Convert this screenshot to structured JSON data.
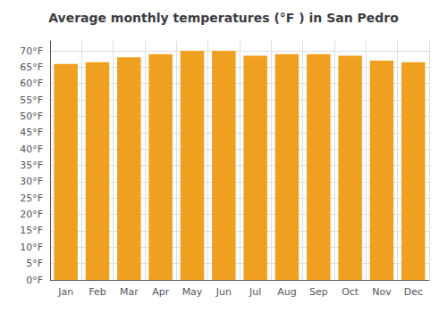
{
  "chart_data": {
    "type": "bar",
    "title": "Average monthly temperatures (°F ) in San Pedro",
    "categories": [
      "Jan",
      "Feb",
      "Mar",
      "Apr",
      "May",
      "Jun",
      "Jul",
      "Aug",
      "Sep",
      "Oct",
      "Nov",
      "Dec"
    ],
    "values": [
      66,
      66.5,
      68,
      69,
      70,
      70,
      68.5,
      69,
      69,
      68.5,
      67,
      66.5
    ],
    "color": "#F0A020",
    "ylim": [
      0,
      73
    ],
    "yticks": [
      {
        "value": 0,
        "label": "0°F"
      },
      {
        "value": 5,
        "label": "5°F"
      },
      {
        "value": 10,
        "label": "10°F"
      },
      {
        "value": 15,
        "label": "15°F"
      },
      {
        "value": 20,
        "label": "20°F"
      },
      {
        "value": 25,
        "label": "25°F"
      },
      {
        "value": 30,
        "label": "30°F"
      },
      {
        "value": 35,
        "label": "35°F"
      },
      {
        "value": 40,
        "label": "40°F"
      },
      {
        "value": 45,
        "label": "45°F"
      },
      {
        "value": 50,
        "label": "50°F"
      },
      {
        "value": 55,
        "label": "55°F"
      },
      {
        "value": 60,
        "label": "60°F"
      },
      {
        "value": 65,
        "label": "65°F"
      },
      {
        "value": 70,
        "label": "70°F"
      }
    ],
    "grid": true
  }
}
